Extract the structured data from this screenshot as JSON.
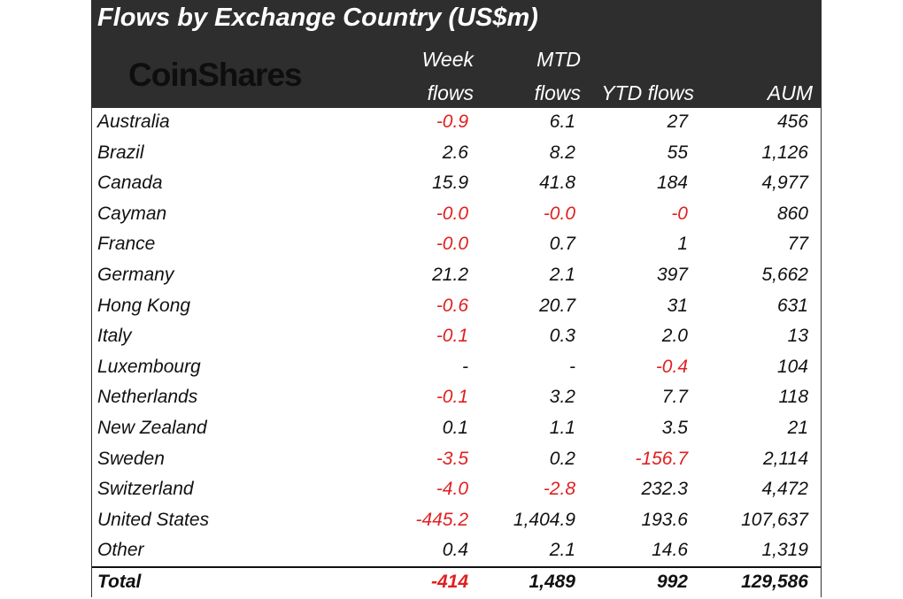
{
  "header": {
    "title": "Flows by Exchange Country (US$m)",
    "logo_text": "CoinShares",
    "columns": {
      "week": [
        "Week",
        "flows"
      ],
      "mtd": [
        "MTD",
        "flows"
      ],
      "ytd": "YTD flows",
      "aum": "AUM"
    }
  },
  "rows": [
    {
      "name": "Australia",
      "week": "-0.9",
      "mtd": "6.1",
      "ytd": "27",
      "aum": "456"
    },
    {
      "name": "Brazil",
      "week": "2.6",
      "mtd": "8.2",
      "ytd": "55",
      "aum": "1,126"
    },
    {
      "name": "Canada",
      "week": "15.9",
      "mtd": "41.8",
      "ytd": "184",
      "aum": "4,977"
    },
    {
      "name": "Cayman",
      "week": "-0.0",
      "mtd": "-0.0",
      "ytd": "-0",
      "aum": "860"
    },
    {
      "name": "France",
      "week": "-0.0",
      "mtd": "0.7",
      "ytd": "1",
      "aum": "77"
    },
    {
      "name": "Germany",
      "week": "21.2",
      "mtd": "2.1",
      "ytd": "397",
      "aum": "5,662"
    },
    {
      "name": "Hong Kong",
      "week": "-0.6",
      "mtd": "20.7",
      "ytd": "31",
      "aum": "631"
    },
    {
      "name": "Italy",
      "week": "-0.1",
      "mtd": "0.3",
      "ytd": "2.0",
      "aum": "13"
    },
    {
      "name": "Luxembourg",
      "week": "-",
      "mtd": "-",
      "ytd": "-0.4",
      "aum": "104"
    },
    {
      "name": "Netherlands",
      "week": "-0.1",
      "mtd": "3.2",
      "ytd": "7.7",
      "aum": "118"
    },
    {
      "name": "New Zealand",
      "week": "0.1",
      "mtd": "1.1",
      "ytd": "3.5",
      "aum": "21"
    },
    {
      "name": "Sweden",
      "week": "-3.5",
      "mtd": "0.2",
      "ytd": "-156.7",
      "aum": "2,114"
    },
    {
      "name": "Switzerland",
      "week": "-4.0",
      "mtd": "-2.8",
      "ytd": "232.3",
      "aum": "4,472"
    },
    {
      "name": "United States",
      "week": "-445.2",
      "mtd": "1,404.9",
      "ytd": "193.6",
      "aum": "107,637"
    },
    {
      "name": "Other",
      "week": "0.4",
      "mtd": "2.1",
      "ytd": "14.6",
      "aum": "1,319"
    }
  ],
  "total": {
    "name": "Total",
    "week": "-414",
    "mtd": "1,489",
    "ytd": "992",
    "aum": "129,586"
  },
  "colors": {
    "header_bg": "#2e2e2e",
    "negative": "#e02020",
    "text": "#111111"
  }
}
